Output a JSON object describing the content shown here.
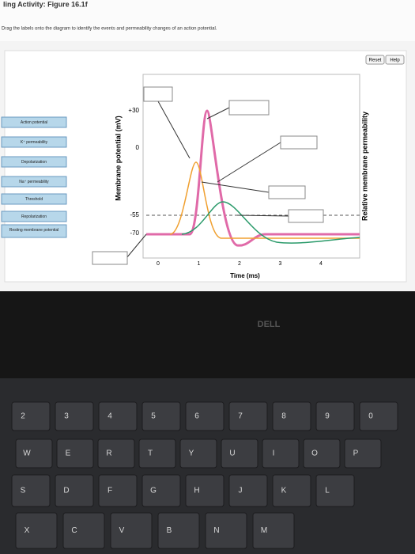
{
  "header": {
    "title": "ling Activity: Figure 16.1f",
    "instruction": "Drag the labels onto the diagram to identify the events and permeability changes of an action potential."
  },
  "buttons": [
    "Reset",
    "Help"
  ],
  "labels": [
    "Action potential",
    "K⁺ permeability",
    "Depolarization",
    "Na⁺ permeability",
    "Threshold",
    "Repolarization",
    "Resting membrane potential"
  ],
  "diagram": {
    "y_axis_label": "Membrane potential (mV)",
    "y_ticks": [
      "+30",
      "0",
      "-55",
      "-70"
    ],
    "x_ticks": [
      "0",
      "1",
      "2",
      "3",
      "4"
    ],
    "x_axis_label": "Time (ms)",
    "right_axis_label": "Relative membrane permeability"
  },
  "laptop": {
    "brand": "DELL",
    "keyboard": [
      [
        "2",
        "3",
        "4",
        "5",
        "6",
        "7",
        "8",
        "9",
        "0"
      ],
      [
        "W",
        "E",
        "R",
        "T",
        "Y",
        "U",
        "I",
        "O",
        "P"
      ],
      [
        "S",
        "D",
        "F",
        "G",
        "H",
        "J",
        "K",
        "L"
      ],
      [
        "X",
        "C",
        "V",
        "B",
        "N",
        "M"
      ]
    ]
  }
}
